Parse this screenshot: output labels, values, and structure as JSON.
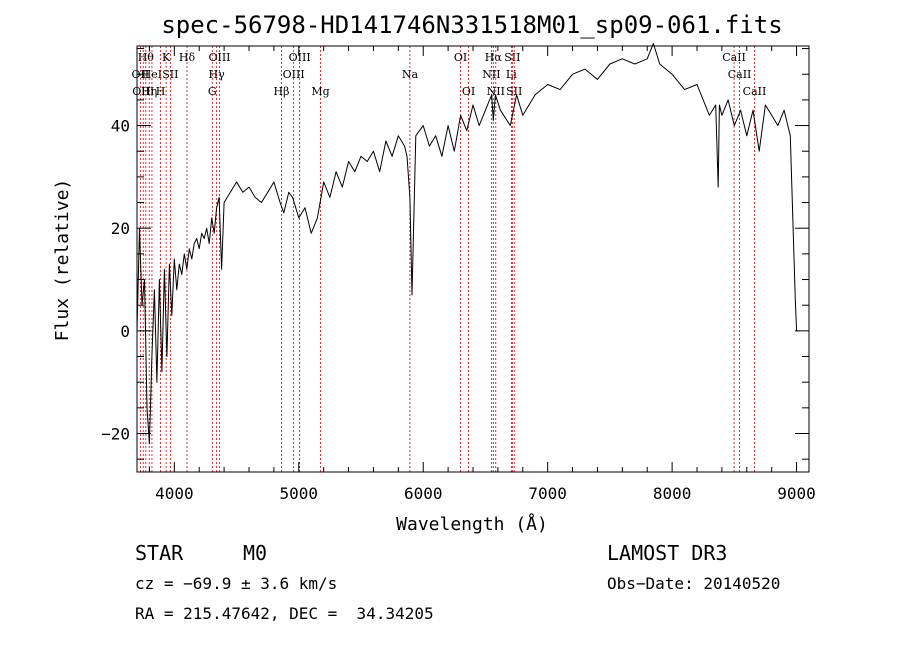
{
  "chart_data": {
    "type": "line",
    "title": "spec-56798-HD141746N331518M01_sp09-061.fits",
    "xlabel": "Wavelength (Å)",
    "ylabel": "Flux (relative)",
    "xlim": [
      3700,
      9100
    ],
    "ylim": [
      -27.5,
      55.5
    ],
    "x_ticks": [
      4000,
      5000,
      6000,
      7000,
      8000,
      9000
    ],
    "y_ticks": [
      -20,
      0,
      20,
      40
    ],
    "grid": false,
    "series": [
      {
        "x": [
          3700,
          3720,
          3740,
          3760,
          3780,
          3800,
          3820,
          3840,
          3860,
          3880,
          3900,
          3920,
          3940,
          3960,
          3980,
          4000,
          4020,
          4040,
          4060,
          4080,
          4100,
          4120,
          4140,
          4160,
          4180,
          4200,
          4220,
          4240,
          4260,
          4280,
          4300,
          4320,
          4340,
          4360,
          4380,
          4400,
          4450,
          4500,
          4550,
          4600,
          4650,
          4700,
          4750,
          4800,
          4850,
          4880,
          4920,
          4950,
          5000,
          5050,
          5100,
          5150,
          5200,
          5250,
          5300,
          5350,
          5400,
          5450,
          5500,
          5550,
          5600,
          5650,
          5700,
          5750,
          5800,
          5850,
          5870,
          5893,
          5910,
          5940,
          6000,
          6050,
          6100,
          6150,
          6200,
          6250,
          6300,
          6350,
          6400,
          6450,
          6500,
          6550,
          6563,
          6580,
          6620,
          6700,
          6750,
          6800,
          6900,
          7000,
          7100,
          7200,
          7300,
          7400,
          7500,
          7600,
          7700,
          7800,
          7850,
          7900,
          8000,
          8100,
          8200,
          8300,
          8350,
          8370,
          8380,
          8400,
          8450,
          8500,
          8550,
          8600,
          8650,
          8700,
          8750,
          8800,
          8850,
          8900,
          8950,
          8990,
          9000,
          9010
        ],
        "y": [
          0,
          20,
          5,
          10,
          -15,
          -22,
          -5,
          8,
          -10,
          10,
          -8,
          12,
          -5,
          13,
          3,
          14,
          8,
          13,
          11,
          15,
          12,
          16,
          14,
          17,
          18,
          16,
          19,
          18,
          20,
          17,
          22,
          19,
          24,
          26,
          12,
          25,
          27,
          29,
          27,
          28,
          26,
          25,
          27,
          29,
          25,
          23,
          27,
          26,
          22,
          24,
          19,
          22,
          29,
          26,
          31,
          28,
          33,
          31,
          34,
          33,
          35,
          31,
          37,
          34,
          38,
          36,
          34,
          26,
          7,
          38,
          40,
          36,
          38,
          34,
          40,
          35,
          42,
          39,
          44,
          40,
          43,
          46,
          41,
          46,
          43,
          40,
          46,
          42,
          46,
          48,
          47,
          50,
          51,
          49,
          52,
          53,
          52,
          53,
          56,
          52,
          50,
          47,
          48,
          42,
          44,
          28,
          44,
          42,
          45,
          40,
          43,
          38,
          43,
          35,
          44,
          42,
          40,
          43,
          38,
          6,
          0,
          0
        ]
      }
    ],
    "line_markers": [
      {
        "w": 3727,
        "label": "OII",
        "row": 1
      },
      {
        "w": 3750,
        "label": "OIII",
        "row": 2
      },
      {
        "w": 3771,
        "label": "Hθ",
        "row": 0
      },
      {
        "w": 3798,
        "label": "Hη",
        "row": 2
      },
      {
        "w": 3820,
        "label": "HeI",
        "row": 1
      },
      {
        "w": 3889,
        "label": "H",
        "row": 2
      },
      {
        "w": 3934,
        "label": "K",
        "row": 0
      },
      {
        "w": 3968,
        "label": "SII",
        "row": 1
      },
      {
        "w": 4102,
        "label": "Hδ",
        "row": 0
      },
      {
        "w": 4305,
        "label": "G",
        "row": 2
      },
      {
        "w": 4340,
        "label": "Hγ",
        "row": 1
      },
      {
        "w": 4363,
        "label": "OIII",
        "row": 0
      },
      {
        "w": 4861,
        "label": "Hβ",
        "row": 2
      },
      {
        "w": 4959,
        "label": "OIII",
        "row": 1
      },
      {
        "w": 5007,
        "label": "OIII",
        "row": 0
      },
      {
        "w": 5175,
        "label": "Mg",
        "row": 2
      },
      {
        "w": 5893,
        "label": "Na",
        "row": 1
      },
      {
        "w": 6300,
        "label": "OI",
        "row": 0
      },
      {
        "w": 6364,
        "label": "OI",
        "row": 2
      },
      {
        "w": 6548,
        "label": "NII",
        "row": 1
      },
      {
        "w": 6563,
        "label": "Hα",
        "row": 0
      },
      {
        "w": 6583,
        "label": "NII",
        "row": 2
      },
      {
        "w": 6708,
        "label": "Li",
        "row": 1
      },
      {
        "w": 6716,
        "label": "SII",
        "row": 0
      },
      {
        "w": 6731,
        "label": "SII",
        "row": 2
      },
      {
        "w": 8498,
        "label": "CaII",
        "row": 0
      },
      {
        "w": 8542,
        "label": "CaII",
        "row": 1
      },
      {
        "w": 8662,
        "label": "CaII",
        "row": 2
      }
    ]
  },
  "info": {
    "class": "STAR",
    "subclass": "M0",
    "cz": "cz = −69.9 ± 3.6 km/s",
    "coords": "RA = 215.47642, DEC =  34.34205",
    "survey": "LAMOST DR3",
    "obs_date": "Obs−Date: 20140520"
  },
  "colors": {
    "marker": "#cc0000",
    "line": "#000000"
  }
}
